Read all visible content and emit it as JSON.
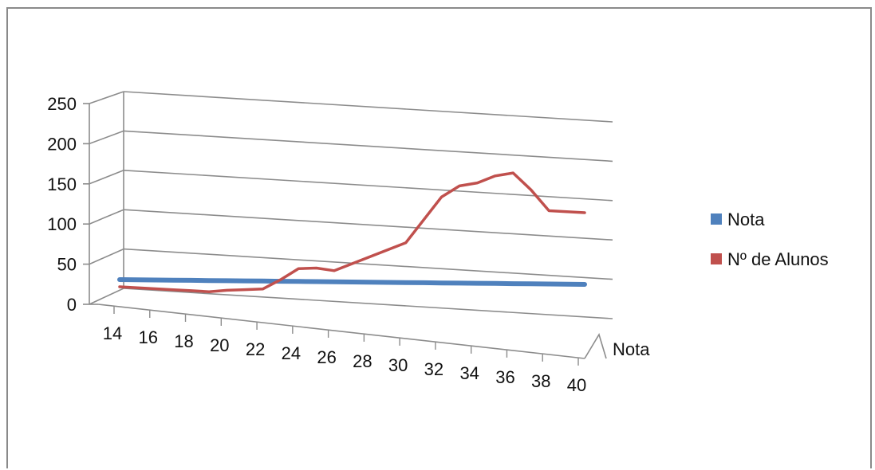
{
  "chart_data": {
    "type": "line",
    "title": "",
    "xlabel": "",
    "ylabel": "",
    "depth_axis_label": "Nota",
    "x": [
      14,
      15,
      16,
      17,
      18,
      19,
      20,
      21,
      22,
      23,
      24,
      25,
      26,
      27,
      28,
      29,
      30,
      31,
      32,
      33,
      34,
      35,
      36,
      37,
      38,
      39,
      40
    ],
    "x_tick_labels": [
      "14",
      "16",
      "18",
      "20",
      "22",
      "24",
      "26",
      "28",
      "30",
      "32",
      "34",
      "36",
      "38",
      "40"
    ],
    "ylim": [
      0,
      250
    ],
    "y_ticks": [
      "0",
      "50",
      "100",
      "150",
      "200",
      "250"
    ],
    "grid": true,
    "legend_position": "right",
    "series": [
      {
        "name": "Nota",
        "color": "#4f81bd",
        "values": [
          14,
          15,
          16,
          17,
          18,
          19,
          20,
          21,
          22,
          23,
          24,
          25,
          26,
          27,
          28,
          29,
          30,
          31,
          32,
          33,
          34,
          35,
          36,
          37,
          38,
          39,
          40
        ]
      },
      {
        "name": "Nº de Alunos",
        "color": "#c0504d",
        "values": [
          5,
          5,
          5,
          5,
          5,
          5,
          8,
          10,
          12,
          25,
          40,
          42,
          40,
          50,
          60,
          70,
          80,
          110,
          140,
          155,
          160,
          170,
          175,
          155,
          130,
          130,
          130
        ]
      }
    ]
  }
}
